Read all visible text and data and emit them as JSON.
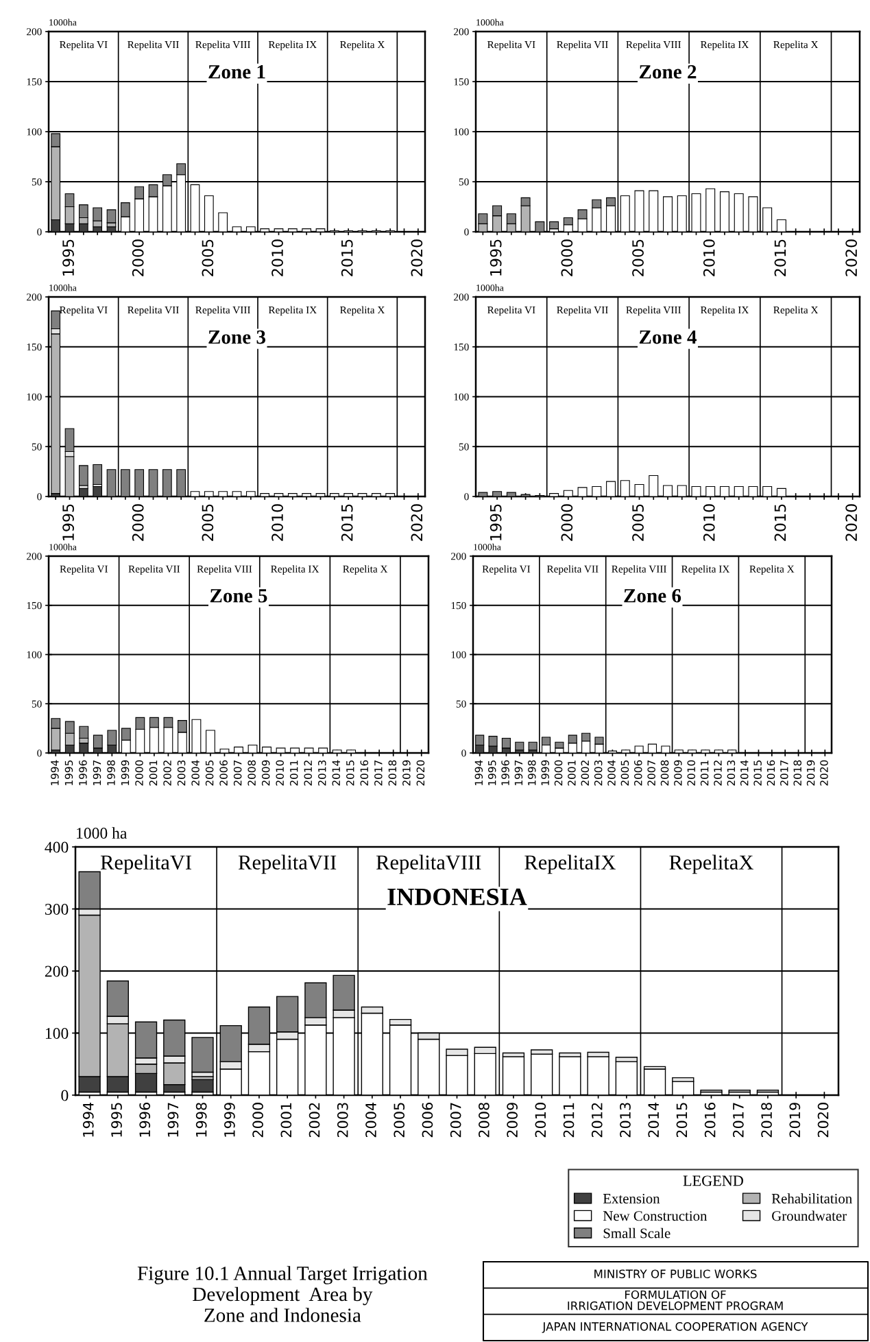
{
  "chart_data": [
    {
      "type": "bar",
      "stacked": true,
      "title": "Zone 1",
      "ylabel": "1000ha",
      "grid": "y",
      "x": [
        1994,
        1995,
        1996,
        1997,
        1998,
        1999,
        2000,
        2001,
        2002,
        2003,
        2004,
        2005,
        2006,
        2007,
        2008,
        2009,
        2010,
        2011,
        2012,
        2013,
        2014,
        2015,
        2016,
        2017,
        2018,
        2019,
        2020
      ],
      "xlim": [
        1993.5,
        2020.5
      ],
      "ylim": [
        0,
        200
      ],
      "yticks": [
        0,
        50,
        100,
        150,
        200
      ],
      "xticks": [
        {
          "value": 1994,
          "label": null
        },
        1995,
        {
          "value": 1996,
          "label": null
        },
        {
          "value": 1997,
          "label": null
        },
        {
          "value": 1998,
          "label": null
        },
        {
          "value": 1999,
          "label": null
        },
        2000,
        {
          "value": 2001,
          "label": null
        },
        {
          "value": 2002,
          "label": null
        },
        {
          "value": 2003,
          "label": null
        },
        {
          "value": 2004,
          "label": null
        },
        2005,
        {
          "value": 2006,
          "label": null
        },
        {
          "value": 2007,
          "label": null
        },
        {
          "value": 2008,
          "label": null
        },
        {
          "value": 2009,
          "label": null
        },
        2010,
        {
          "value": 2011,
          "label": null
        },
        {
          "value": 2012,
          "label": null
        },
        {
          "value": 2013,
          "label": null
        },
        {
          "value": 2014,
          "label": null
        },
        2015,
        {
          "value": 2016,
          "label": null
        },
        {
          "value": 2017,
          "label": null
        },
        {
          "value": 2018,
          "label": null
        },
        {
          "value": 2019,
          "label": null
        },
        2020
      ],
      "ref_lines": [
        {
          "axis": "x",
          "value": 1998.5
        },
        {
          "axis": "x",
          "value": 2003.5
        },
        {
          "axis": "x",
          "value": 2008.5
        },
        {
          "axis": "x",
          "value": 2013.5
        },
        {
          "axis": "x",
          "value": 2018.5
        }
      ],
      "annotations": [
        "Repelita VI",
        "Repelita VII",
        "Repelita VIII",
        "Repelita IX",
        "Repelita X"
      ],
      "series": [
        {
          "color": "#ffffff",
          "values": [
            0,
            0,
            0,
            0,
            0,
            15,
            33,
            35,
            46,
            57,
            47,
            36,
            19,
            5,
            5,
            3,
            3,
            3,
            3,
            3,
            1,
            1,
            1,
            1,
            1,
            0,
            0
          ]
        },
        {
          "color": "#404040",
          "values": [
            12,
            8,
            8,
            5,
            5,
            0,
            0,
            0,
            0,
            0,
            0,
            0,
            0,
            0,
            0,
            0,
            0,
            0,
            0,
            0,
            0,
            0,
            0,
            0,
            0,
            0,
            0
          ]
        },
        {
          "color": "#b3b3b3",
          "values": [
            73,
            17,
            6,
            6,
            4,
            0,
            0,
            0,
            0,
            0,
            0,
            0,
            0,
            0,
            0,
            0,
            0,
            0,
            0,
            0,
            0,
            0,
            0,
            0,
            0,
            0,
            0
          ]
        },
        {
          "color": "#808080",
          "values": [
            13,
            13,
            13,
            13,
            13,
            14,
            12,
            12,
            11,
            11,
            0,
            0,
            0,
            0,
            0,
            0,
            0,
            0,
            0,
            0,
            0,
            0,
            0,
            0,
            0,
            0,
            0
          ]
        }
      ]
    },
    {
      "type": "bar",
      "stacked": true,
      "title": "Zone 2",
      "ylabel": "1000ha",
      "grid": "y",
      "x": [
        1994,
        1995,
        1996,
        1997,
        1998,
        1999,
        2000,
        2001,
        2002,
        2003,
        2004,
        2005,
        2006,
        2007,
        2008,
        2009,
        2010,
        2011,
        2012,
        2013,
        2014,
        2015,
        2016,
        2017,
        2018,
        2019,
        2020
      ],
      "xlim": [
        1993.5,
        2020.5
      ],
      "ylim": [
        0,
        200
      ],
      "yticks": [
        0,
        50,
        100,
        150,
        200
      ],
      "xticks": [
        {
          "value": 1994,
          "label": null
        },
        1995,
        {
          "value": 1996,
          "label": null
        },
        {
          "value": 1997,
          "label": null
        },
        {
          "value": 1998,
          "label": null
        },
        {
          "value": 1999,
          "label": null
        },
        2000,
        {
          "value": 2001,
          "label": null
        },
        {
          "value": 2002,
          "label": null
        },
        {
          "value": 2003,
          "label": null
        },
        {
          "value": 2004,
          "label": null
        },
        2005,
        {
          "value": 2006,
          "label": null
        },
        {
          "value": 2007,
          "label": null
        },
        {
          "value": 2008,
          "label": null
        },
        {
          "value": 2009,
          "label": null
        },
        2010,
        {
          "value": 2011,
          "label": null
        },
        {
          "value": 2012,
          "label": null
        },
        {
          "value": 2013,
          "label": null
        },
        {
          "value": 2014,
          "label": null
        },
        2015,
        {
          "value": 2016,
          "label": null
        },
        {
          "value": 2017,
          "label": null
        },
        {
          "value": 2018,
          "label": null
        },
        {
          "value": 2019,
          "label": null
        },
        2020
      ],
      "ref_lines": [
        {
          "axis": "x",
          "value": 1998.5
        },
        {
          "axis": "x",
          "value": 2003.5
        },
        {
          "axis": "x",
          "value": 2008.5
        },
        {
          "axis": "x",
          "value": 2013.5
        },
        {
          "axis": "x",
          "value": 2018.5
        }
      ],
      "annotations": [
        "Repelita VI",
        "Repelita VII",
        "Repelita VIII",
        "Repelita IX",
        "Repelita X"
      ],
      "series": [
        {
          "color": "#ffffff",
          "values": [
            0,
            0,
            0,
            0,
            0,
            3,
            7,
            13,
            24,
            26,
            36,
            41,
            41,
            35,
            36,
            38,
            43,
            40,
            38,
            35,
            24,
            12,
            0,
            0,
            0,
            0,
            0
          ]
        },
        {
          "color": "#b3b3b3",
          "values": [
            8,
            16,
            8,
            26,
            0,
            0,
            0,
            0,
            0,
            0,
            0,
            0,
            0,
            0,
            0,
            0,
            0,
            0,
            0,
            0,
            0,
            0,
            0,
            0,
            0,
            0,
            0
          ]
        },
        {
          "color": "#808080",
          "values": [
            10,
            10,
            10,
            8,
            10,
            7,
            7,
            9,
            8,
            8,
            0,
            0,
            0,
            0,
            0,
            0,
            0,
            0,
            0,
            0,
            0,
            0,
            0,
            0,
            0,
            0,
            0
          ]
        }
      ]
    },
    {
      "type": "bar",
      "stacked": true,
      "title": "Zone 3",
      "ylabel": "1000ha",
      "grid": "y",
      "x": [
        1994,
        1995,
        1996,
        1997,
        1998,
        1999,
        2000,
        2001,
        2002,
        2003,
        2004,
        2005,
        2006,
        2007,
        2008,
        2009,
        2010,
        2011,
        2012,
        2013,
        2014,
        2015,
        2016,
        2017,
        2018,
        2019,
        2020
      ],
      "xlim": [
        1993.5,
        2020.5
      ],
      "ylim": [
        0,
        200
      ],
      "yticks": [
        0,
        50,
        100,
        150,
        200
      ],
      "xticks": [
        {
          "value": 1994,
          "label": null
        },
        1995,
        {
          "value": 1996,
          "label": null
        },
        {
          "value": 1997,
          "label": null
        },
        {
          "value": 1998,
          "label": null
        },
        {
          "value": 1999,
          "label": null
        },
        2000,
        {
          "value": 2001,
          "label": null
        },
        {
          "value": 2002,
          "label": null
        },
        {
          "value": 2003,
          "label": null
        },
        {
          "value": 2004,
          "label": null
        },
        2005,
        {
          "value": 2006,
          "label": null
        },
        {
          "value": 2007,
          "label": null
        },
        {
          "value": 2008,
          "label": null
        },
        {
          "value": 2009,
          "label": null
        },
        2010,
        {
          "value": 2011,
          "label": null
        },
        {
          "value": 2012,
          "label": null
        },
        {
          "value": 2013,
          "label": null
        },
        {
          "value": 2014,
          "label": null
        },
        2015,
        {
          "value": 2016,
          "label": null
        },
        {
          "value": 2017,
          "label": null
        },
        {
          "value": 2018,
          "label": null
        },
        {
          "value": 2019,
          "label": null
        },
        2020
      ],
      "ref_lines": [
        {
          "axis": "x",
          "value": 1998.5
        },
        {
          "axis": "x",
          "value": 2003.5
        },
        {
          "axis": "x",
          "value": 2008.5
        },
        {
          "axis": "x",
          "value": 2013.5
        },
        {
          "axis": "x",
          "value": 2018.5
        }
      ],
      "annotations": [
        "Repelita VI",
        "Repelita VII",
        "Repelita VIII",
        "Repelita IX",
        "Repelita X"
      ],
      "series": [
        {
          "color": "#ffffff",
          "values": [
            0,
            0,
            0,
            0,
            0,
            0,
            0,
            0,
            0,
            0,
            5,
            5,
            5,
            5,
            5,
            3,
            3,
            3,
            3,
            3,
            3,
            3,
            3,
            3,
            3,
            0,
            0
          ]
        },
        {
          "color": "#404040",
          "values": [
            3,
            0,
            8,
            10,
            0,
            0,
            0,
            0,
            0,
            0,
            0,
            0,
            0,
            0,
            0,
            0,
            0,
            0,
            0,
            0,
            0,
            0,
            0,
            0,
            0,
            0,
            0
          ]
        },
        {
          "color": "#b3b3b3",
          "values": [
            160,
            40,
            0,
            0,
            0,
            0,
            0,
            0,
            0,
            0,
            0,
            0,
            0,
            0,
            0,
            0,
            0,
            0,
            0,
            0,
            0,
            0,
            0,
            0,
            0,
            0,
            0
          ]
        },
        {
          "color": "#e6e6e6",
          "values": [
            5,
            5,
            3,
            2,
            0,
            0,
            0,
            0,
            0,
            0,
            0,
            0,
            0,
            0,
            0,
            0,
            0,
            0,
            0,
            0,
            0,
            0,
            0,
            0,
            0,
            0,
            0
          ]
        },
        {
          "color": "#808080",
          "values": [
            18,
            23,
            20,
            20,
            27,
            27,
            27,
            27,
            27,
            27,
            0,
            0,
            0,
            0,
            0,
            0,
            0,
            0,
            0,
            0,
            0,
            0,
            0,
            0,
            0,
            0,
            0
          ]
        }
      ]
    },
    {
      "type": "bar",
      "stacked": true,
      "title": "Zone 4",
      "ylabel": "1000ha",
      "grid": "y",
      "x": [
        1994,
        1995,
        1996,
        1997,
        1998,
        1999,
        2000,
        2001,
        2002,
        2003,
        2004,
        2005,
        2006,
        2007,
        2008,
        2009,
        2010,
        2011,
        2012,
        2013,
        2014,
        2015,
        2016,
        2017,
        2018,
        2019,
        2020
      ],
      "xlim": [
        1993.5,
        2020.5
      ],
      "ylim": [
        0,
        200
      ],
      "yticks": [
        0,
        50,
        100,
        150,
        200
      ],
      "xticks": [
        {
          "value": 1994,
          "label": null
        },
        1995,
        {
          "value": 1996,
          "label": null
        },
        {
          "value": 1997,
          "label": null
        },
        {
          "value": 1998,
          "label": null
        },
        {
          "value": 1999,
          "label": null
        },
        2000,
        {
          "value": 2001,
          "label": null
        },
        {
          "value": 2002,
          "label": null
        },
        {
          "value": 2003,
          "label": null
        },
        {
          "value": 2004,
          "label": null
        },
        2005,
        {
          "value": 2006,
          "label": null
        },
        {
          "value": 2007,
          "label": null
        },
        {
          "value": 2008,
          "label": null
        },
        {
          "value": 2009,
          "label": null
        },
        2010,
        {
          "value": 2011,
          "label": null
        },
        {
          "value": 2012,
          "label": null
        },
        {
          "value": 2013,
          "label": null
        },
        {
          "value": 2014,
          "label": null
        },
        2015,
        {
          "value": 2016,
          "label": null
        },
        {
          "value": 2017,
          "label": null
        },
        {
          "value": 2018,
          "label": null
        },
        {
          "value": 2019,
          "label": null
        },
        2020
      ],
      "ref_lines": [
        {
          "axis": "x",
          "value": 1998.5
        },
        {
          "axis": "x",
          "value": 2003.5
        },
        {
          "axis": "x",
          "value": 2008.5
        },
        {
          "axis": "x",
          "value": 2013.5
        },
        {
          "axis": "x",
          "value": 2018.5
        }
      ],
      "annotations": [
        "Repelita VI",
        "Repelita VII",
        "Repelita VIII",
        "Repelita IX",
        "Repelita X"
      ],
      "series": [
        {
          "color": "#ffffff",
          "values": [
            0,
            0,
            0,
            0,
            0,
            3,
            6,
            9,
            10,
            15,
            16,
            12,
            21,
            11,
            11,
            10,
            10,
            10,
            10,
            10,
            10,
            8,
            0,
            0,
            0,
            0,
            0
          ]
        },
        {
          "color": "#808080",
          "values": [
            4,
            5,
            4,
            2,
            1,
            0,
            0,
            0,
            0,
            0,
            0,
            0,
            0,
            0,
            0,
            0,
            0,
            0,
            0,
            0,
            0,
            0,
            0,
            0,
            0,
            0,
            0
          ]
        }
      ]
    },
    {
      "type": "bar",
      "stacked": true,
      "title": "Zone 5",
      "ylabel": "1000ha",
      "grid": "y",
      "x": [
        1994,
        1995,
        1996,
        1997,
        1998,
        1999,
        2000,
        2001,
        2002,
        2003,
        2004,
        2005,
        2006,
        2007,
        2008,
        2009,
        2010,
        2011,
        2012,
        2013,
        2014,
        2015,
        2016,
        2017,
        2018,
        2019,
        2020
      ],
      "xlim": [
        1993.5,
        2020.5
      ],
      "ylim": [
        0,
        200
      ],
      "yticks": [
        0,
        50,
        100,
        150,
        200
      ],
      "xticks": [
        1994,
        1995,
        1996,
        1997,
        1998,
        1999,
        2000,
        2001,
        2002,
        2003,
        2004,
        2005,
        2006,
        2007,
        2008,
        2009,
        2010,
        2011,
        2012,
        2013,
        2014,
        2015,
        2016,
        2017,
        2018,
        2019,
        2020
      ],
      "ref_lines": [
        {
          "axis": "x",
          "value": 1998.5
        },
        {
          "axis": "x",
          "value": 2003.5
        },
        {
          "axis": "x",
          "value": 2008.5
        },
        {
          "axis": "x",
          "value": 2013.5
        },
        {
          "axis": "x",
          "value": 2018.5
        }
      ],
      "annotations": [
        "Repelita VI",
        "Repelita VII",
        "Repelita VIII",
        "Repelita IX",
        "Repelita X"
      ],
      "series": [
        {
          "color": "#ffffff",
          "values": [
            0,
            0,
            0,
            0,
            0,
            13,
            24,
            26,
            26,
            21,
            34,
            23,
            4,
            6,
            8,
            6,
            5,
            5,
            5,
            5,
            3,
            3,
            0,
            0,
            0,
            0,
            0
          ]
        },
        {
          "color": "#404040",
          "values": [
            3,
            8,
            10,
            5,
            8,
            0,
            0,
            0,
            0,
            0,
            0,
            0,
            0,
            0,
            0,
            0,
            0,
            0,
            0,
            0,
            0,
            0,
            0,
            0,
            0,
            0,
            0
          ]
        },
        {
          "color": "#b3b3b3",
          "values": [
            22,
            12,
            5,
            0,
            0,
            0,
            0,
            0,
            0,
            0,
            0,
            0,
            0,
            0,
            0,
            0,
            0,
            0,
            0,
            0,
            0,
            0,
            0,
            0,
            0,
            0,
            0
          ]
        },
        {
          "color": "#808080",
          "values": [
            10,
            12,
            12,
            13,
            15,
            12,
            12,
            10,
            10,
            12,
            0,
            0,
            0,
            0,
            0,
            0,
            0,
            0,
            0,
            0,
            0,
            0,
            0,
            0,
            0,
            0,
            0
          ]
        }
      ]
    },
    {
      "type": "bar",
      "stacked": true,
      "title": "Zone 6",
      "ylabel": "1000ha",
      "grid": "y",
      "x": [
        1994,
        1995,
        1996,
        1997,
        1998,
        1999,
        2000,
        2001,
        2002,
        2003,
        2004,
        2005,
        2006,
        2007,
        2008,
        2009,
        2010,
        2011,
        2012,
        2013,
        2014,
        2015,
        2016,
        2017,
        2018,
        2019,
        2020
      ],
      "xlim": [
        1993.5,
        2020.5
      ],
      "ylim": [
        0,
        200
      ],
      "yticks": [
        0,
        50,
        100,
        150,
        200
      ],
      "xticks": [
        1994,
        1995,
        1996,
        1997,
        1998,
        1999,
        2000,
        2001,
        2002,
        2003,
        2004,
        2005,
        2006,
        2007,
        2008,
        2009,
        2010,
        2011,
        2012,
        2013,
        2014,
        2015,
        2016,
        2017,
        2018,
        2019,
        2020
      ],
      "ref_lines": [
        {
          "axis": "x",
          "value": 1998.5
        },
        {
          "axis": "x",
          "value": 2003.5
        },
        {
          "axis": "x",
          "value": 2008.5
        },
        {
          "axis": "x",
          "value": 2013.5
        },
        {
          "axis": "x",
          "value": 2018.5
        }
      ],
      "annotations": [
        "Repelita VI",
        "Repelita VII",
        "Repelita VIII",
        "Repelita IX",
        "Repelita X"
      ],
      "series": [
        {
          "color": "#ffffff",
          "values": [
            0,
            0,
            0,
            0,
            0,
            8,
            5,
            10,
            12,
            9,
            2,
            3,
            7,
            9,
            7,
            3,
            3,
            3,
            3,
            3,
            0,
            0,
            0,
            0,
            0,
            0,
            0
          ]
        },
        {
          "color": "#404040",
          "values": [
            8,
            7,
            5,
            3,
            3,
            0,
            0,
            0,
            0,
            0,
            0,
            0,
            0,
            0,
            0,
            0,
            0,
            0,
            0,
            0,
            0,
            0,
            0,
            0,
            0,
            0,
            0
          ]
        },
        {
          "color": "#808080",
          "values": [
            10,
            10,
            10,
            8,
            8,
            8,
            6,
            8,
            8,
            7,
            0,
            0,
            0,
            0,
            0,
            0,
            0,
            0,
            0,
            0,
            0,
            0,
            0,
            0,
            0,
            0,
            0
          ]
        }
      ]
    },
    {
      "type": "bar",
      "stacked": true,
      "title": "INDONESIA",
      "ylabel": "1000 ha",
      "grid": "y",
      "legend": "bottom right",
      "legend_title": "LEGEND",
      "x": [
        1994,
        1995,
        1996,
        1997,
        1998,
        1999,
        2000,
        2001,
        2002,
        2003,
        2004,
        2005,
        2006,
        2007,
        2008,
        2009,
        2010,
        2011,
        2012,
        2013,
        2014,
        2015,
        2016,
        2017,
        2018,
        2019,
        2020
      ],
      "xlim": [
        1993.5,
        2020.5
      ],
      "ylim": [
        0,
        400
      ],
      "yticks": [
        0,
        100,
        200,
        300,
        400
      ],
      "xticks": [
        1994,
        1995,
        1996,
        1997,
        1998,
        1999,
        2000,
        2001,
        2002,
        2003,
        2004,
        2005,
        2006,
        2007,
        2008,
        2009,
        2010,
        2011,
        2012,
        2013,
        2014,
        2015,
        2016,
        2017,
        2018,
        2019,
        2020
      ],
      "ref_lines": [
        {
          "axis": "x",
          "value": 1998.5
        },
        {
          "axis": "x",
          "value": 2003.5
        },
        {
          "axis": "x",
          "value": 2008.5
        },
        {
          "axis": "x",
          "value": 2013.5
        },
        {
          "axis": "x",
          "value": 2018.5
        }
      ],
      "annotations": [
        "RepelitaVI",
        "RepelitaVII",
        "RepelitaVIII",
        "RepelitaIX",
        "RepelitaX",
        "Figure 10.1 Annual Target Irrigation\nDevelopment  Area by\nZone and Indonesia",
        "MINISTRY OF PUBLIC WORKS",
        "FORMULATION OF\nIRRIGATION DEVELOPMENT PROGRAM",
        "JAPAN INTERNATIONAL COOPERATION AGENCY"
      ],
      "series": [
        {
          "name": "Extension",
          "color": "#404040",
          "values": [
            25,
            25,
            30,
            12,
            20,
            0,
            0,
            0,
            0,
            0,
            0,
            0,
            0,
            0,
            0,
            0,
            0,
            0,
            0,
            0,
            0,
            0,
            0,
            0,
            0,
            0,
            0
          ]
        },
        {
          "name": "New Construction",
          "color": "#ffffff",
          "values": [
            5,
            5,
            5,
            5,
            5,
            42,
            70,
            90,
            113,
            125,
            132,
            113,
            90,
            64,
            67,
            62,
            66,
            62,
            62,
            54,
            42,
            22,
            5,
            5,
            5,
            0,
            0
          ]
        },
        {
          "name": "Small Scale",
          "color": "#808080",
          "values": [
            60,
            57,
            58,
            58,
            56,
            58,
            60,
            57,
            56,
            56,
            0,
            0,
            0,
            0,
            0,
            0,
            0,
            0,
            0,
            0,
            0,
            0,
            0,
            0,
            0,
            0,
            0
          ]
        },
        {
          "name": "Rehabilitation",
          "color": "#b3b3b3",
          "values": [
            260,
            85,
            15,
            35,
            5,
            0,
            0,
            0,
            0,
            0,
            0,
            0,
            0,
            0,
            0,
            0,
            0,
            0,
            0,
            0,
            0,
            0,
            0,
            0,
            0,
            0,
            0
          ]
        },
        {
          "name": "Groundwater",
          "color": "#e6e6e6",
          "values": [
            10,
            12,
            10,
            11,
            7,
            12,
            12,
            12,
            12,
            12,
            10,
            9,
            10,
            10,
            10,
            6,
            7,
            6,
            7,
            7,
            4,
            6,
            3,
            3,
            3,
            0,
            0
          ]
        }
      ]
    }
  ]
}
